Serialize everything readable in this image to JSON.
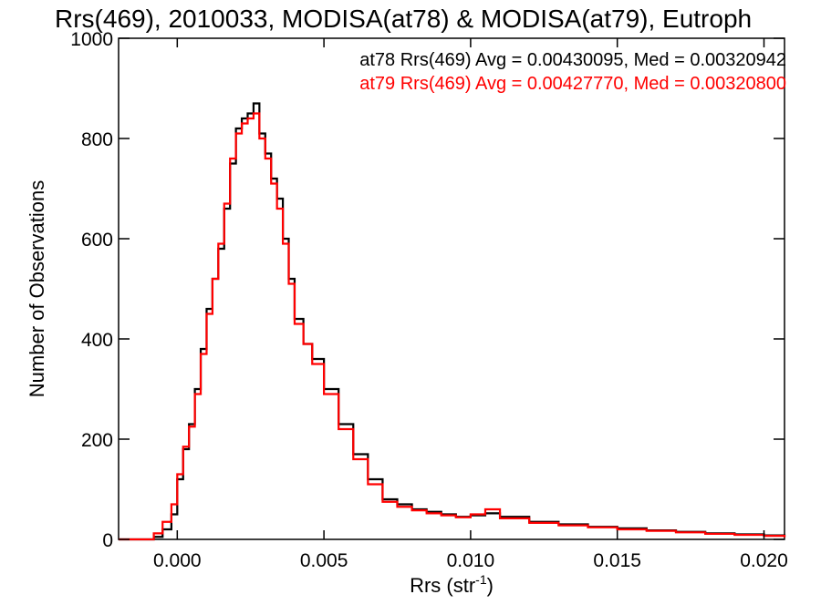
{
  "chart_data": {
    "type": "line",
    "style": "step",
    "title": "Rrs(469), 2010033, MODISA(at78) & MODISA(at79), Eutroph",
    "xlabel": "Rrs (str",
    "xlabel_sup": "-1",
    "xlabel_close": ")",
    "ylabel": "Number of Observations",
    "xlim": [
      -0.002,
      0.0207
    ],
    "ylim": [
      0,
      1000
    ],
    "x_ticks": [
      0.0,
      0.005,
      0.01,
      0.015,
      0.02
    ],
    "x_tick_labels": [
      "0.000",
      "0.005",
      "0.010",
      "0.015",
      "0.020"
    ],
    "y_ticks": [
      0,
      200,
      400,
      600,
      800,
      1000
    ],
    "y_tick_labels": [
      "0",
      "200",
      "400",
      "600",
      "800",
      "1000"
    ],
    "grid": false,
    "legend_position": "top-right",
    "series": [
      {
        "name": "at78",
        "annotation": "at78 Rrs(469) Avg = 0.00430095, Med = 0.00320942",
        "color": "#000000",
        "x": [
          -0.002,
          -0.001,
          -0.0008,
          -0.0005,
          -0.0002,
          0.0,
          0.0002,
          0.0004,
          0.0006,
          0.0008,
          0.001,
          0.0012,
          0.0014,
          0.0016,
          0.0018,
          0.002,
          0.0022,
          0.0024,
          0.0026,
          0.0028,
          0.003,
          0.0032,
          0.0034,
          0.0036,
          0.0038,
          0.004,
          0.0043,
          0.0046,
          0.005,
          0.0055,
          0.006,
          0.0065,
          0.007,
          0.0075,
          0.008,
          0.0085,
          0.009,
          0.0095,
          0.01,
          0.0105,
          0.011,
          0.012,
          0.013,
          0.014,
          0.015,
          0.016,
          0.017,
          0.018,
          0.019,
          0.02,
          0.0207
        ],
        "y": [
          0,
          0,
          5,
          20,
          50,
          120,
          180,
          230,
          300,
          380,
          460,
          520,
          580,
          660,
          750,
          820,
          840,
          850,
          870,
          810,
          770,
          720,
          680,
          600,
          520,
          440,
          390,
          360,
          300,
          230,
          170,
          120,
          80,
          70,
          60,
          55,
          50,
          45,
          48,
          52,
          45,
          35,
          30,
          25,
          22,
          18,
          15,
          12,
          10,
          8,
          5
        ]
      },
      {
        "name": "at79",
        "annotation": "at79 Rrs(469) Avg = 0.00427770, Med = 0.00320800",
        "color": "#ff0000",
        "x": [
          -0.002,
          -0.001,
          -0.0008,
          -0.0005,
          -0.0002,
          0.0,
          0.0002,
          0.0004,
          0.0006,
          0.0008,
          0.001,
          0.0012,
          0.0014,
          0.0016,
          0.0018,
          0.002,
          0.0022,
          0.0024,
          0.0026,
          0.0028,
          0.003,
          0.0032,
          0.0034,
          0.0036,
          0.0038,
          0.004,
          0.0043,
          0.0046,
          0.005,
          0.0055,
          0.006,
          0.0065,
          0.007,
          0.0075,
          0.008,
          0.0085,
          0.009,
          0.0095,
          0.01,
          0.0105,
          0.011,
          0.012,
          0.013,
          0.014,
          0.015,
          0.016,
          0.017,
          0.018,
          0.019,
          0.02,
          0.0207
        ],
        "y": [
          0,
          0,
          12,
          35,
          70,
          130,
          185,
          225,
          290,
          370,
          450,
          520,
          590,
          670,
          760,
          810,
          830,
          840,
          850,
          800,
          760,
          710,
          660,
          590,
          510,
          430,
          390,
          350,
          290,
          220,
          160,
          110,
          75,
          65,
          58,
          52,
          48,
          44,
          50,
          60,
          42,
          33,
          28,
          24,
          20,
          17,
          14,
          11,
          9,
          7,
          4
        ]
      }
    ]
  }
}
